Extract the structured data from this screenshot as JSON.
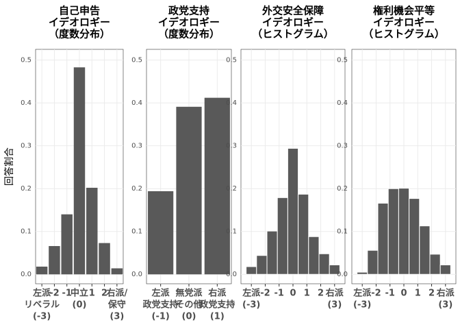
{
  "y_axis_label": "回答割合",
  "chart_data": [
    {
      "type": "bar",
      "title": [
        "自己申告",
        "イデオロギー",
        "（度数分布）"
      ],
      "categories": [
        [
          "左派",
          "リベラル",
          "(-3)"
        ],
        [
          "-2"
        ],
        [
          "-1"
        ],
        [
          "中立",
          "(0)"
        ],
        [
          "1"
        ],
        [
          "2"
        ],
        [
          "右派/",
          "保守",
          "(3)"
        ]
      ],
      "values": [
        0.018,
        0.066,
        0.14,
        0.483,
        0.202,
        0.073,
        0.014
      ],
      "color": "#595959",
      "ylim": [
        -0.022,
        0.525
      ],
      "yticks": [
        {
          "value": 0,
          "label": "0.0"
        },
        0.1,
        0.2,
        0.3,
        0.4,
        0.5
      ],
      "grid": true
    },
    {
      "type": "bar",
      "title": [
        "政党支持",
        "イデオロギー",
        "（度数分布）"
      ],
      "categories": [
        [
          "左派",
          "政党支持",
          "(-1)"
        ],
        [
          "無党派",
          "その他",
          "(0)"
        ],
        [
          "右派",
          "政党支持",
          "(1)"
        ]
      ],
      "values": [
        0.194,
        0.391,
        0.412
      ],
      "color": "#595959",
      "ylim": [
        -0.022,
        0.525
      ],
      "yticks": [
        {
          "value": 0,
          "label": "0.0"
        },
        0.1,
        0.2,
        0.3,
        0.4,
        0.5
      ],
      "grid": true
    },
    {
      "type": "histogram",
      "title": [
        "外交安全保障",
        "イデオロギー",
        "（ヒストグラム）"
      ],
      "bins": [
        -3.375,
        -2.625,
        -1.875,
        -1.125,
        -0.375,
        0.375,
        1.125,
        1.875,
        2.625,
        3.375
      ],
      "values": [
        0.018,
        0.044,
        0.101,
        0.179,
        0.294,
        0.187,
        0.088,
        0.048,
        0.022
      ],
      "color": "#595959",
      "xlim": [
        -3.75,
        3.75
      ],
      "xticks": [
        {
          "value": -3,
          "label": [
            "左派",
            "(-3)"
          ]
        },
        -2,
        -1,
        0,
        1,
        2,
        {
          "value": 3,
          "label": [
            "右派",
            "(3)"
          ]
        }
      ],
      "ylim": [
        -0.022,
        0.525
      ],
      "yticks": [
        {
          "value": 0,
          "label": "0.0"
        },
        0.1,
        0.2,
        0.3,
        0.4,
        0.5
      ],
      "grid": true
    },
    {
      "type": "histogram",
      "title": [
        "権利機会平等",
        "イデオロギー",
        "（ヒストグラム）"
      ],
      "bins": [
        -3.375,
        -2.625,
        -1.875,
        -1.125,
        -0.375,
        0.375,
        1.125,
        1.875,
        2.625,
        3.375
      ],
      "values": [
        0.005,
        0.056,
        0.166,
        0.2,
        0.201,
        0.177,
        0.113,
        0.047,
        0.022
      ],
      "color": "#595959",
      "xlim": [
        -3.75,
        3.75
      ],
      "xticks": [
        {
          "value": -3,
          "label": [
            "左派",
            "(-3)"
          ]
        },
        -2,
        -1,
        0,
        1,
        2,
        {
          "value": 3,
          "label": [
            "右派",
            "(3)"
          ]
        }
      ],
      "ylim": [
        -0.022,
        0.525
      ],
      "yticks": [
        {
          "value": 0,
          "label": "0.0"
        },
        0.1,
        0.2,
        0.3,
        0.4,
        0.5
      ],
      "grid": true
    }
  ]
}
